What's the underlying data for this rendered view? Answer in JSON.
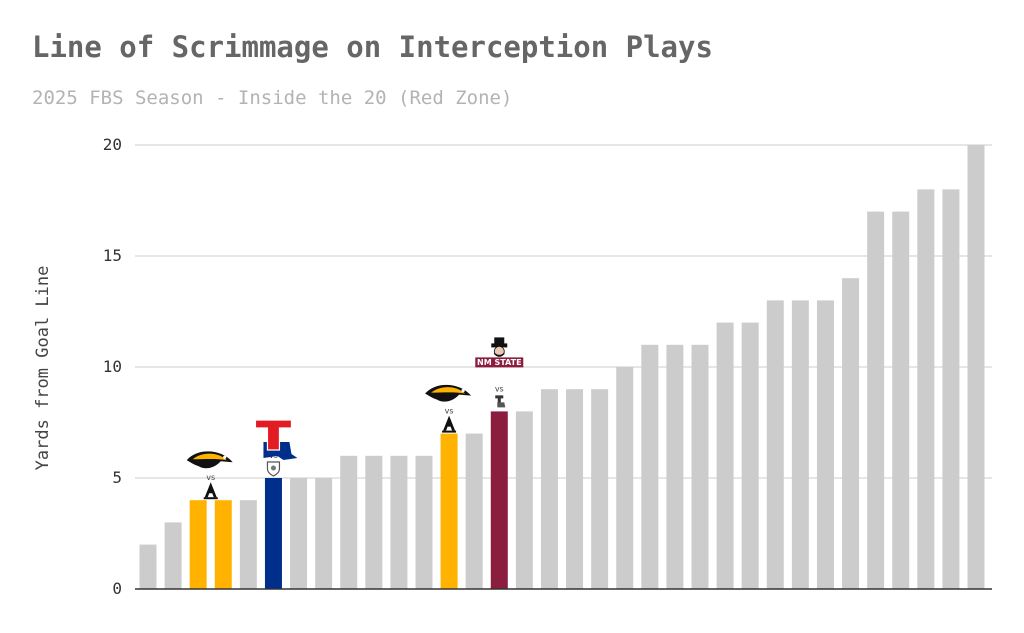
{
  "chart_data": {
    "type": "bar",
    "title": "Line of Scrimmage on Interception Plays",
    "subtitle": "2025 FBS Season - Inside the 20 (Red Zone)",
    "ylabel": "Yards from Goal Line",
    "xlabel": "",
    "ylim": [
      0,
      20
    ],
    "yticks": [
      0,
      5,
      10,
      15,
      20
    ],
    "grid": true,
    "values": [
      2,
      3,
      4,
      4,
      4,
      5,
      5,
      5,
      6,
      6,
      6,
      6,
      7,
      7,
      8,
      8,
      9,
      9,
      9,
      10,
      11,
      11,
      11,
      12,
      12,
      13,
      13,
      13,
      14,
      17,
      17,
      18,
      18,
      20
    ],
    "colors": [
      "#cccccc",
      "#cccccc",
      "#ffb300",
      "#ffb300",
      "#cccccc",
      "#002f8b",
      "#cccccc",
      "#cccccc",
      "#cccccc",
      "#cccccc",
      "#cccccc",
      "#cccccc",
      "#ffb300",
      "#cccccc",
      "#8b1e3f",
      "#cccccc",
      "#cccccc",
      "#cccccc",
      "#cccccc",
      "#cccccc",
      "#cccccc",
      "#cccccc",
      "#cccccc",
      "#cccccc",
      "#cccccc",
      "#cccccc",
      "#cccccc",
      "#cccccc",
      "#cccccc",
      "#cccccc",
      "#cccccc",
      "#cccccc",
      "#cccccc",
      "#cccccc"
    ],
    "default_color": "#cccccc",
    "annotations": [
      {
        "bar_index": 2,
        "bar_index_end": 3,
        "offense_logo": "golden-eagle-icon",
        "vs_text": "vs",
        "defense_logo": "app-state-a-icon",
        "logo_color": "#ffb300"
      },
      {
        "bar_index": 5,
        "offense_logo": "louisiana-tech-logo-icon",
        "vs_text": "vs",
        "defense_logo": "shield-badge-icon",
        "logo_color": "#002f8b"
      },
      {
        "bar_index": 12,
        "offense_logo": "golden-eagle-icon",
        "vs_text": "vs",
        "defense_logo": "app-state-a-icon",
        "logo_color": "#ffb300"
      },
      {
        "bar_index": 14,
        "offense_logo": "nm-state-logo-icon",
        "offense_logo_text": "NM STATE",
        "vs_text": "vs",
        "defense_logo": "louisiana-tech-mini-icon",
        "logo_color": "#8b1e3f"
      }
    ]
  }
}
